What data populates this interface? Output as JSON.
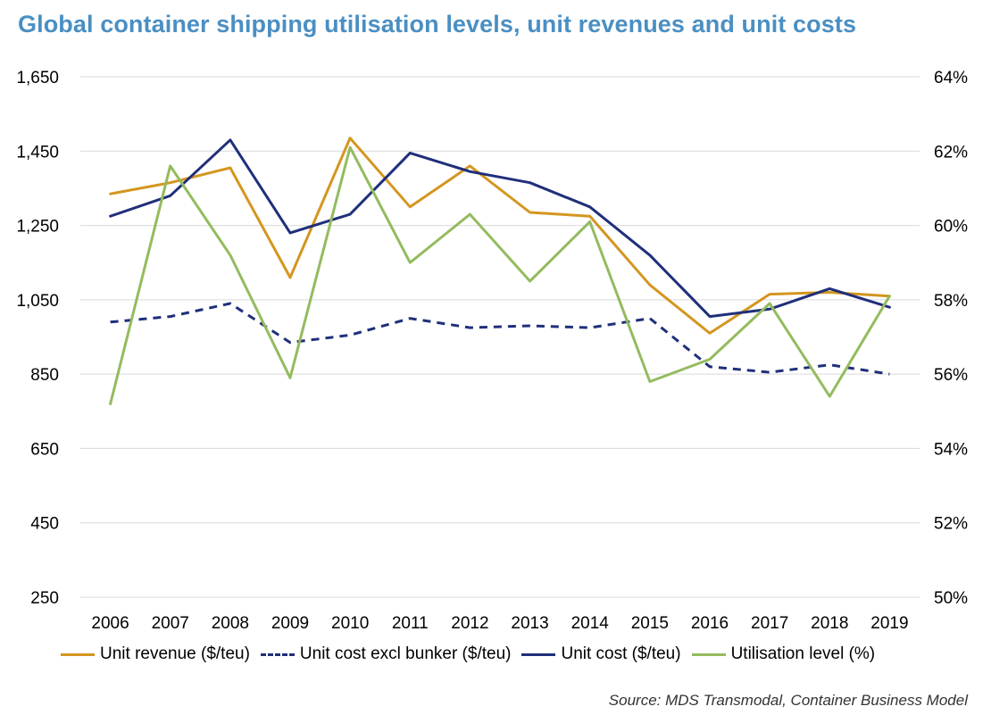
{
  "title": "Global container shipping utilisation levels, unit revenues and unit costs",
  "source": "Source: MDS Transmodal, Container Business Model",
  "colors": {
    "unit_revenue": "#d4961f",
    "unit_cost_excl_bunker": "#1f2f7a",
    "unit_cost": "#1f2f7a",
    "utilisation": "#94bb5f",
    "grid": "#d9d9d9",
    "title": "#4a8fc3"
  },
  "chart_data": {
    "type": "line",
    "title": "Global container shipping utilisation levels, unit revenues and unit costs",
    "categories": [
      "2006",
      "2007",
      "2008",
      "2009",
      "2010",
      "2011",
      "2012",
      "2013",
      "2014",
      "2015",
      "2016",
      "2017",
      "2018",
      "2019"
    ],
    "y_left": {
      "range": [
        250,
        1650
      ],
      "ticks": [
        250,
        450,
        650,
        850,
        1050,
        1250,
        1450,
        1650
      ],
      "tick_labels": [
        "250",
        "450",
        "650",
        "850",
        "1,050",
        "1,250",
        "1,450",
        "1,650"
      ]
    },
    "y_right": {
      "range": [
        50,
        64
      ],
      "ticks": [
        50,
        52,
        54,
        56,
        58,
        60,
        62,
        64
      ],
      "tick_labels": [
        "50%",
        "52%",
        "54%",
        "56%",
        "58%",
        "60%",
        "62%",
        "64%"
      ]
    },
    "grid": "horizontal",
    "legend_position": "bottom",
    "series": [
      {
        "name": "Unit revenue ($/teu)",
        "axis": "left",
        "style": "solid",
        "color_key": "unit_revenue",
        "values": [
          1335,
          1365,
          1405,
          1110,
          1485,
          1300,
          1410,
          1285,
          1275,
          1090,
          960,
          1065,
          1070,
          1060
        ]
      },
      {
        "name": "Unit cost excl bunker ($/teu)",
        "axis": "left",
        "style": "dashed",
        "color_key": "unit_cost_excl_bunker",
        "values": [
          990,
          1005,
          1040,
          935,
          955,
          1000,
          975,
          980,
          975,
          1000,
          870,
          855,
          875,
          850
        ]
      },
      {
        "name": "Unit cost ($/teu)",
        "axis": "left",
        "style": "solid",
        "color_key": "unit_cost",
        "values": [
          1275,
          1330,
          1480,
          1230,
          1280,
          1445,
          1395,
          1365,
          1300,
          1170,
          1005,
          1025,
          1080,
          1030
        ]
      },
      {
        "name": "Utilisation level (%)",
        "axis": "right",
        "style": "solid",
        "color_key": "utilisation",
        "values": [
          55.2,
          61.6,
          59.2,
          55.9,
          62.1,
          59.0,
          60.3,
          58.5,
          60.1,
          55.8,
          56.4,
          57.9,
          55.4,
          58.1
        ]
      }
    ]
  }
}
